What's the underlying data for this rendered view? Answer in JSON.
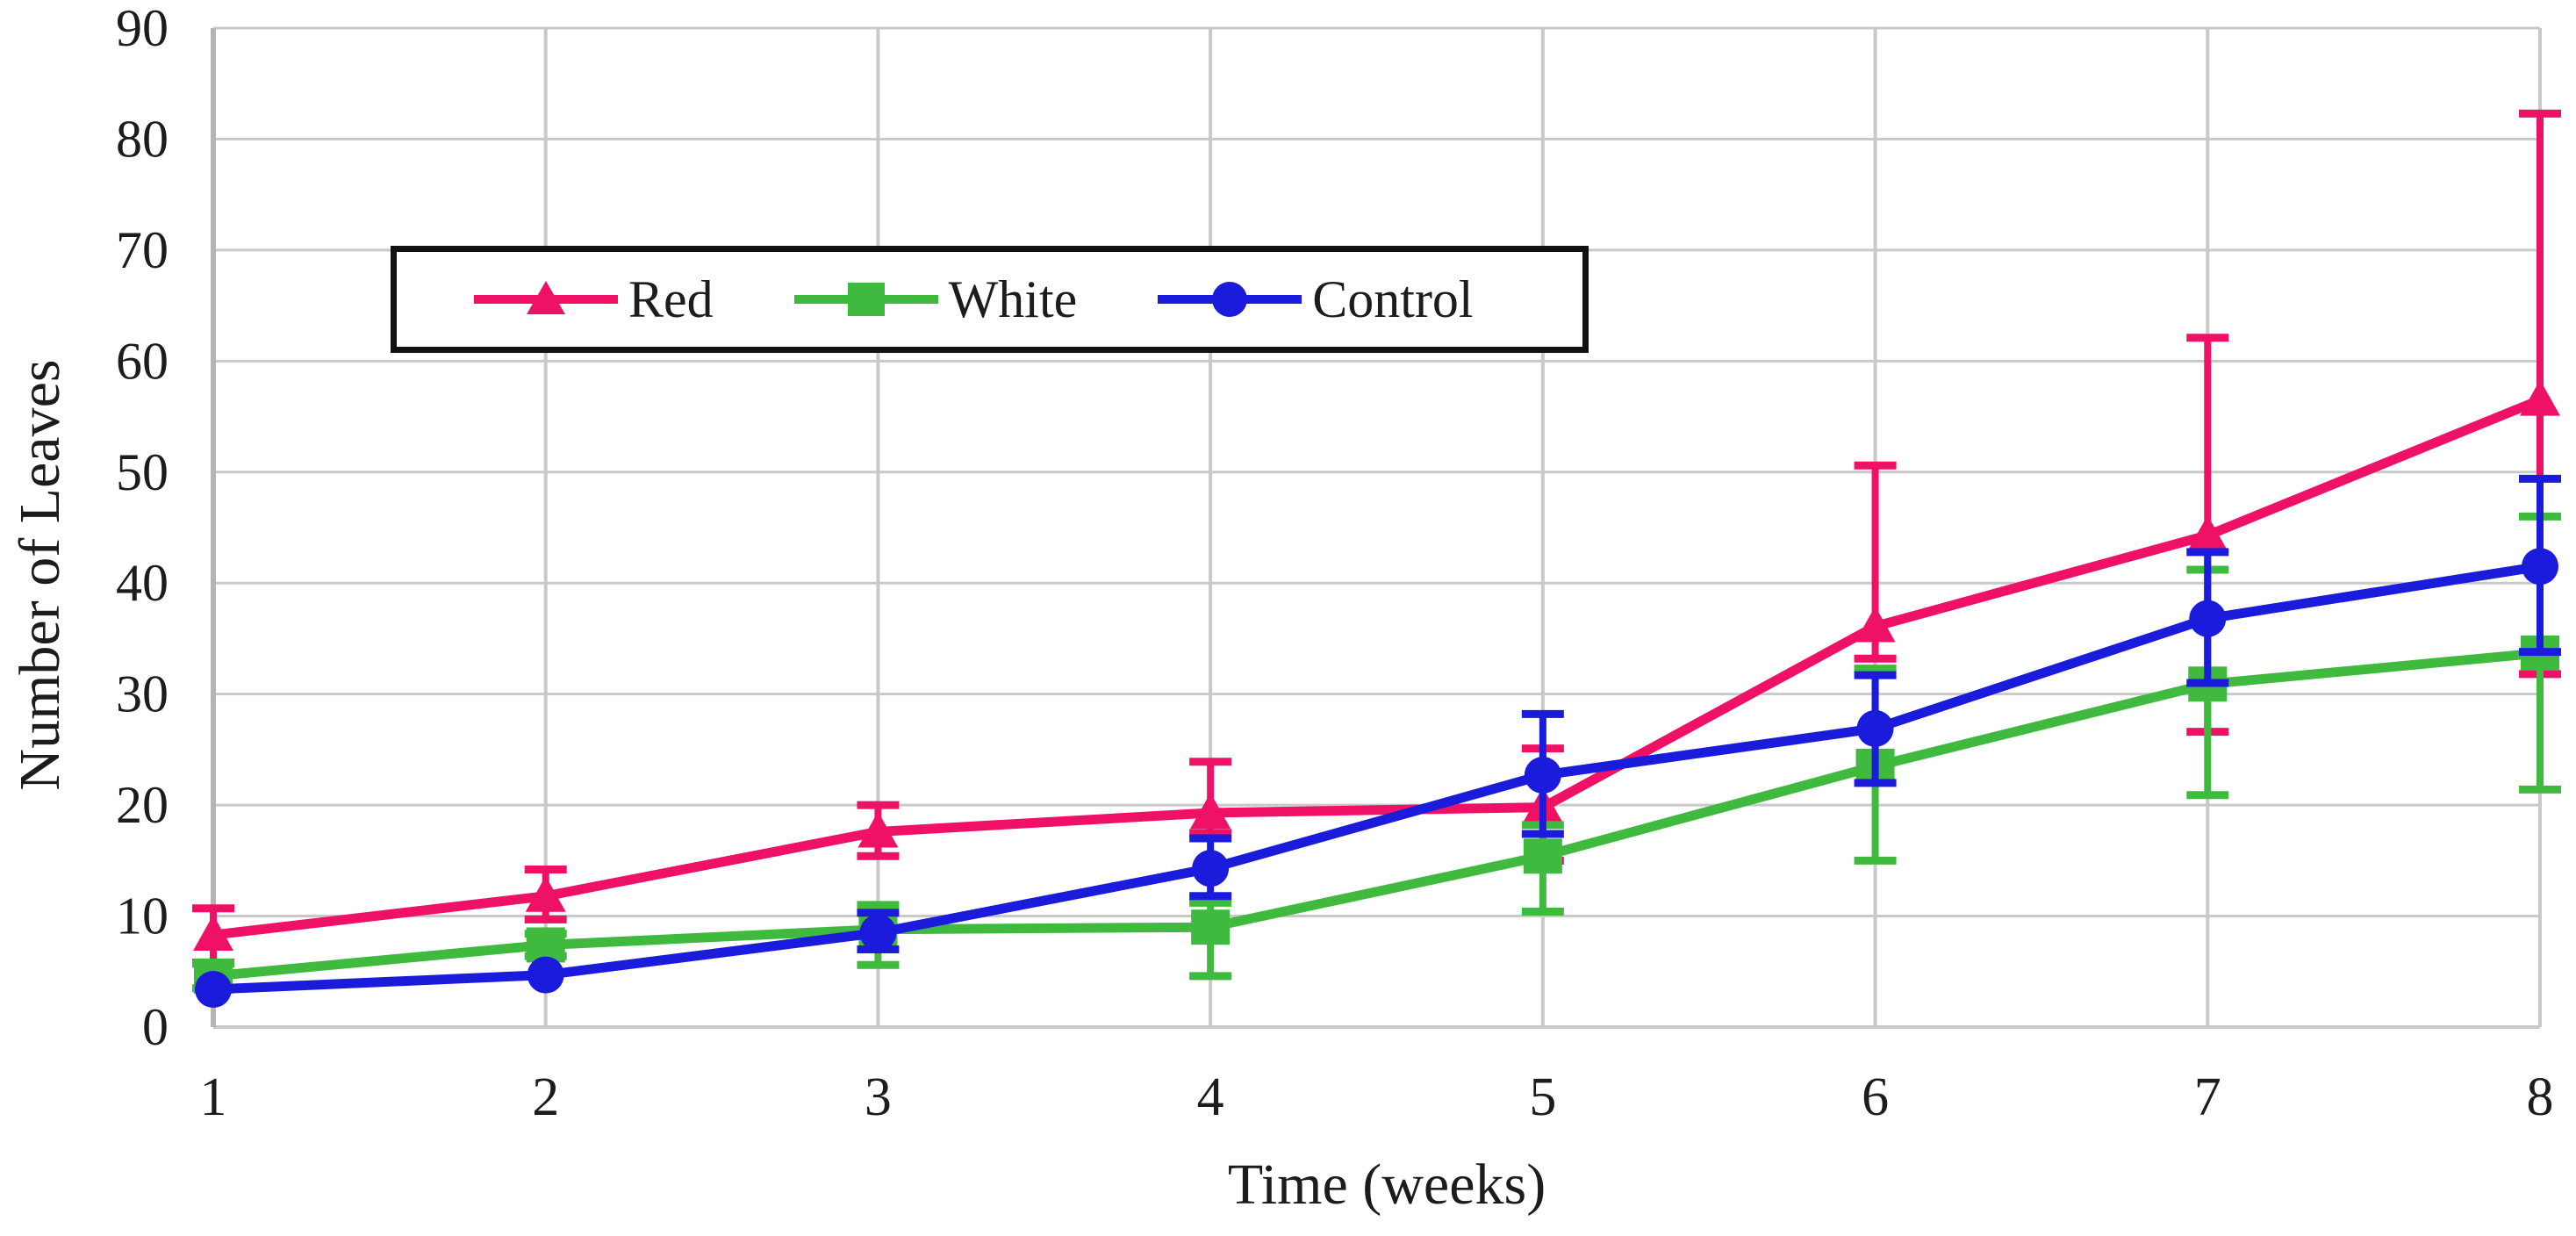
{
  "chart_data": {
    "type": "line",
    "title": "",
    "xlabel": "Time (weeks)",
    "ylabel": "Number of Leaves",
    "categories": [
      "1",
      "2",
      "3",
      "4",
      "5",
      "6",
      "7",
      "8"
    ],
    "x_values": [
      1,
      2,
      3,
      4,
      5,
      6,
      7,
      8
    ],
    "yticks": [
      0,
      10,
      20,
      30,
      40,
      50,
      60,
      70,
      80,
      90
    ],
    "ylim": [
      0,
      90
    ],
    "grid": true,
    "error_bars": true,
    "legend_position": "top-left-inside",
    "colors": {
      "grid": "#c9c9c9",
      "axis": "#b5b5b5",
      "text": "#1c1c1c",
      "legend_border": "#111111",
      "background": "#ffffff"
    },
    "series": [
      {
        "name": "Red",
        "color": "#ee1165",
        "marker": "triangle",
        "values": [
          8.3,
          11.8,
          17.6,
          19.3,
          19.8,
          36.1,
          44.3,
          56.5
        ],
        "err_lo": [
          5.8,
          9.7,
          15.4,
          17.5,
          15.0,
          33.2,
          26.6,
          31.8
        ],
        "err_hi": [
          10.7,
          14.2,
          20.0,
          23.9,
          25.1,
          50.6,
          62.1,
          82.3
        ]
      },
      {
        "name": "White",
        "color": "#3fba3f",
        "marker": "square",
        "values": [
          4.6,
          7.4,
          8.8,
          9.0,
          15.4,
          23.5,
          30.9,
          33.7
        ],
        "err_lo": [
          3.5,
          6.4,
          5.6,
          4.6,
          10.4,
          15.0,
          20.9,
          21.4
        ],
        "err_hi": [
          5.7,
          8.4,
          11.0,
          11.2,
          18.2,
          32.3,
          41.2,
          46.0
        ]
      },
      {
        "name": "Control",
        "color": "#1b1bdc",
        "marker": "circle",
        "values": [
          3.4,
          4.7,
          8.5,
          14.3,
          22.7,
          26.9,
          36.8,
          41.5
        ],
        "err_lo": [
          null,
          null,
          7.0,
          11.8,
          17.4,
          22.0,
          31.0,
          33.8
        ],
        "err_hi": [
          null,
          null,
          10.3,
          17.0,
          28.2,
          31.7,
          42.8,
          49.4
        ]
      }
    ]
  }
}
